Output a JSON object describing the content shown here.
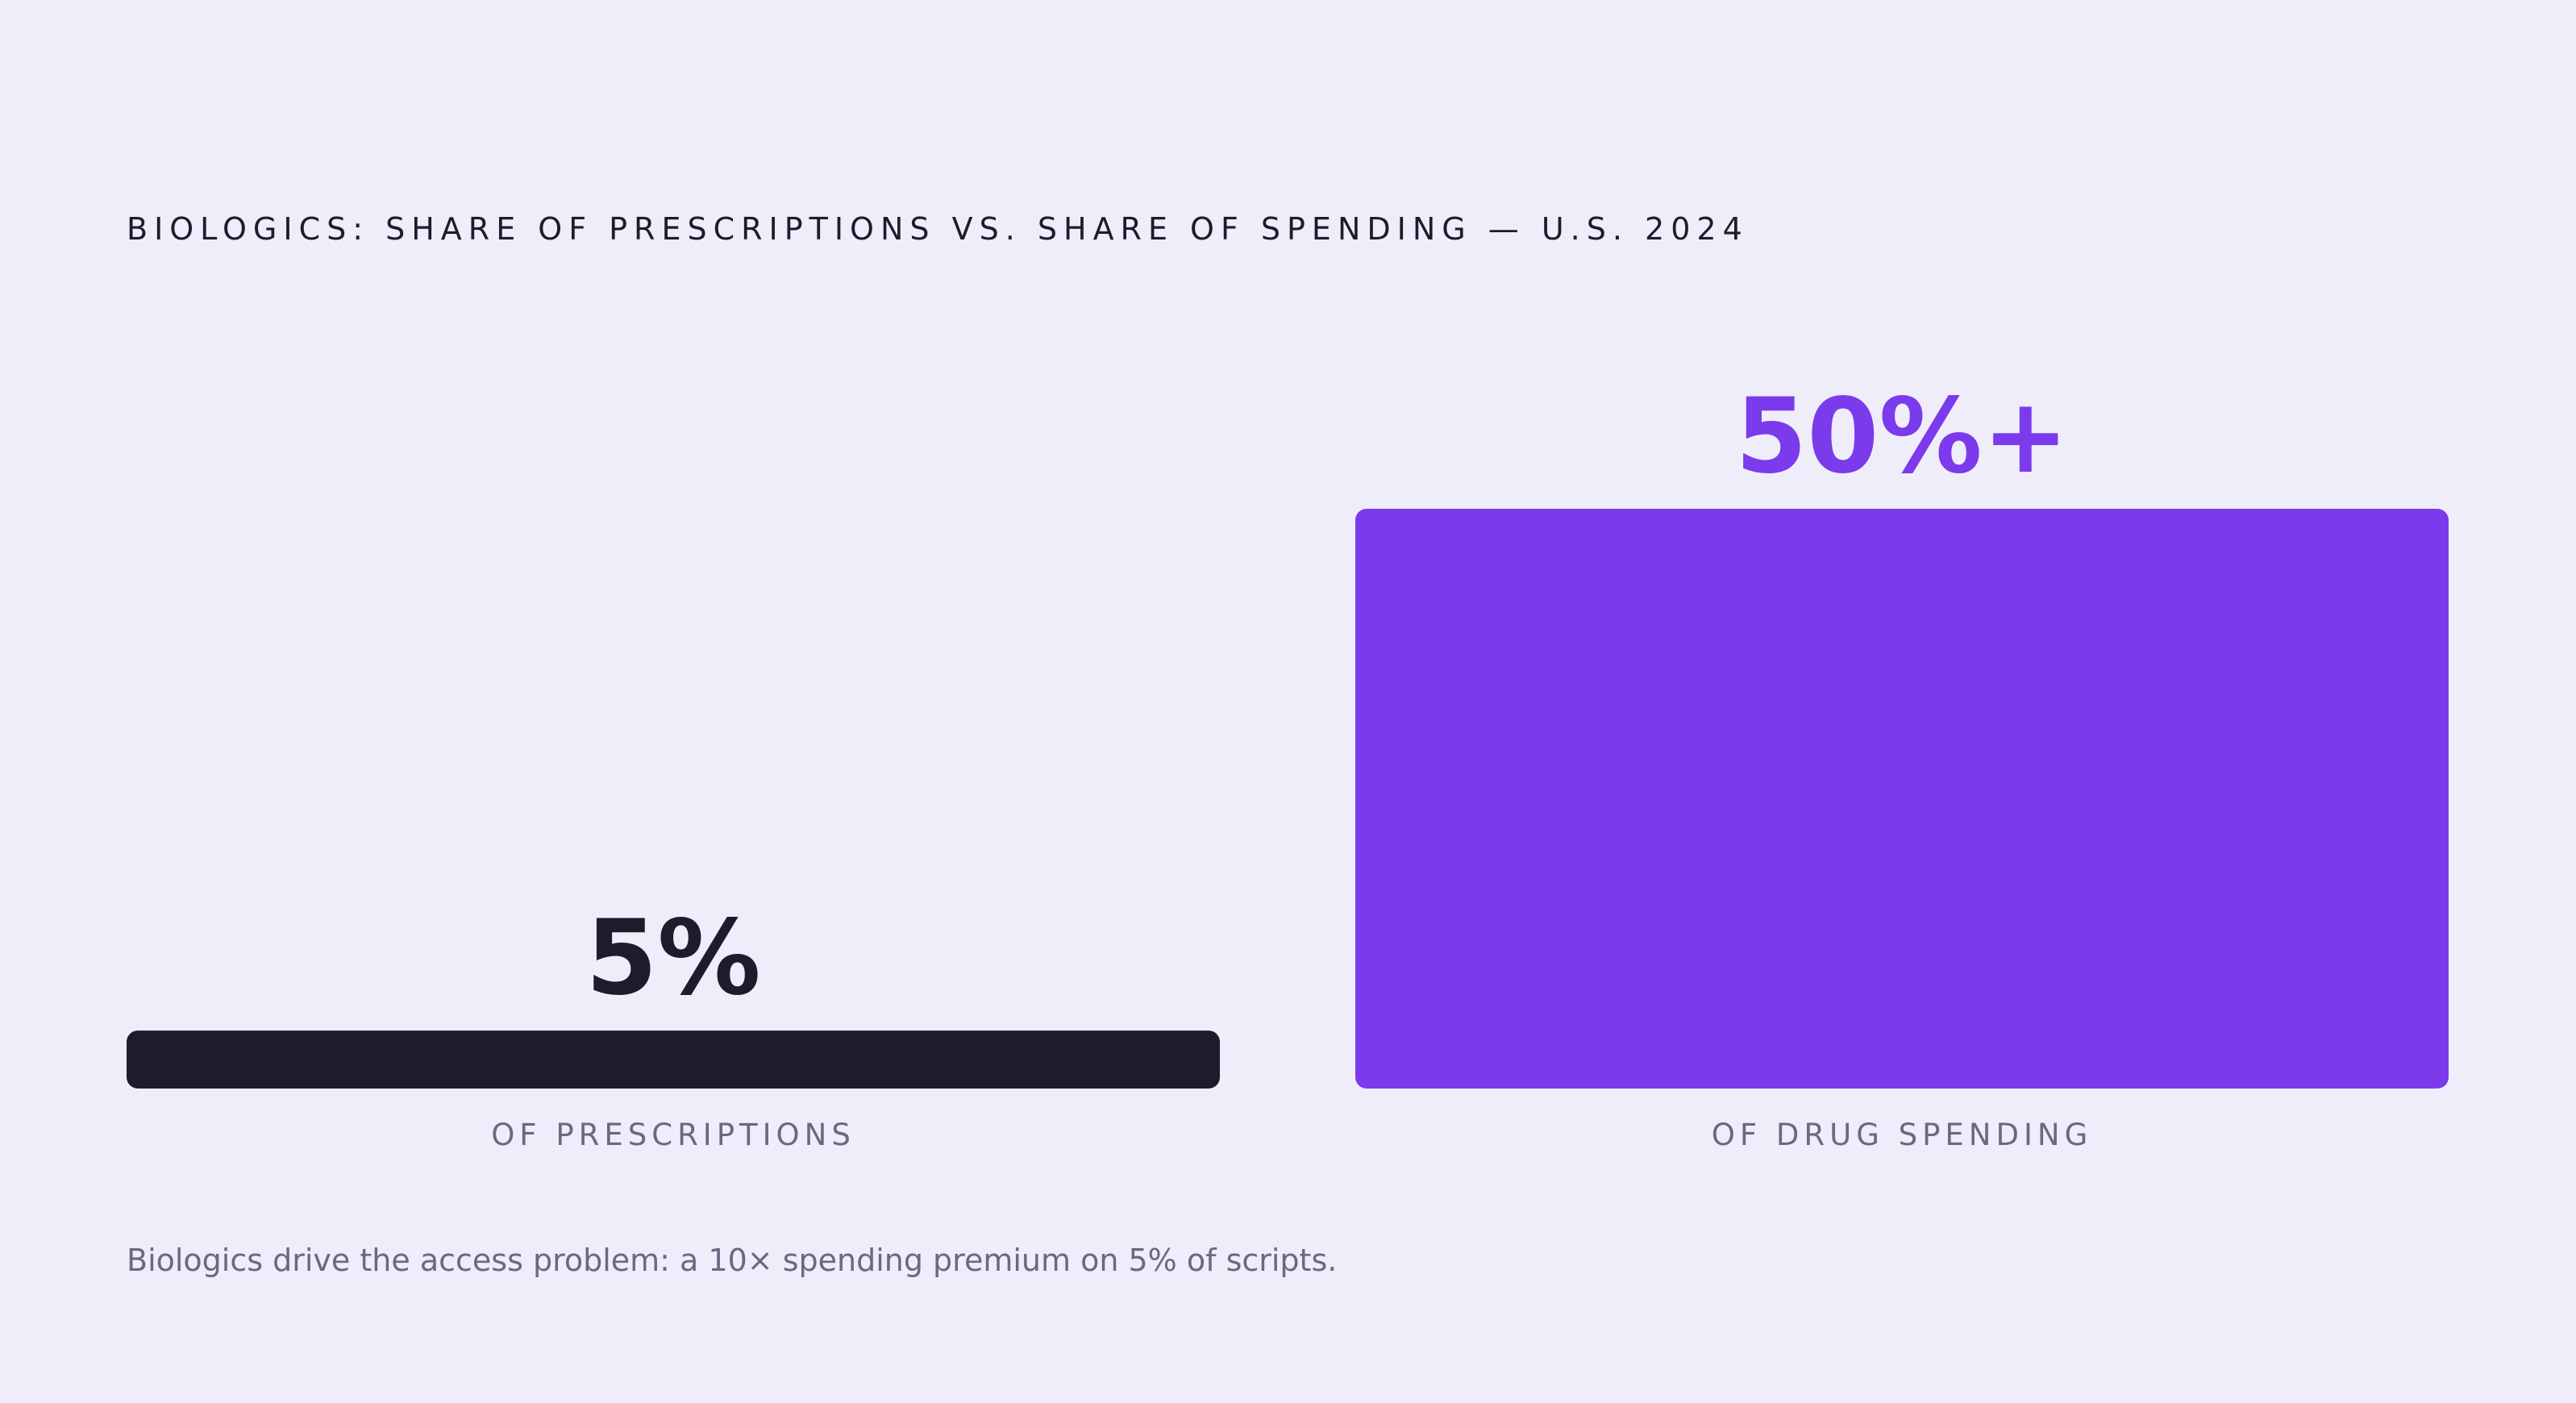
{
  "chart_data": {
    "type": "bar",
    "title": "BIOLOGICS: SHARE OF PRESCRIPTIONS VS. SHARE OF SPENDING — U.S. 2024",
    "categories": [
      "OF PRESCRIPTIONS",
      "OF DRUG SPENDING"
    ],
    "values": [
      5,
      50
    ],
    "value_labels": [
      "5%",
      "50%+"
    ],
    "ylim": [
      0,
      50
    ],
    "grid": false,
    "colors": [
      "#1E1C2B",
      "#7B3AEC"
    ],
    "label_colors": [
      "#1E1C2B",
      "#7B3AEC"
    ]
  },
  "footnote": "Biologics drive the access problem: a 10× spending premium on 5% of scripts.",
  "colors": {
    "background": "#EFEDF9",
    "title": "#1E1C2B",
    "category_label": "#6B6880",
    "footnote": "#6B6880"
  }
}
